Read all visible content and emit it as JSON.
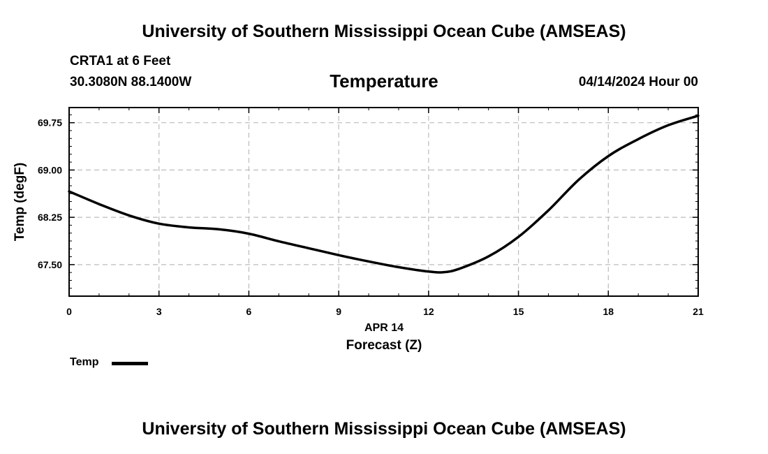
{
  "header": {
    "title": "University of Southern Mississippi Ocean Cube (AMSEAS)",
    "station": "CRTA1 at 6 Feet",
    "coordinates": "30.3080N  88.1400W",
    "variable": "Temperature",
    "datetime": "04/14/2024 Hour 00"
  },
  "footer": {
    "title": "University of Southern Mississippi Ocean Cube (AMSEAS)"
  },
  "legend": {
    "label": "Temp",
    "color": "#000000"
  },
  "chart_data": {
    "type": "line",
    "title": "Temperature",
    "xlabel": "Forecast (Z)",
    "xlabel_date": "APR 14",
    "ylabel": "Temp (degF)",
    "xlim": [
      0,
      21
    ],
    "ylim": [
      67.0,
      69.99
    ],
    "xticks": [
      0,
      3,
      6,
      9,
      12,
      15,
      18,
      21
    ],
    "xtick_labels": [
      "0",
      "3",
      "6",
      "9",
      "12",
      "15",
      "18",
      "21"
    ],
    "yticks": [
      67.5,
      68.25,
      69.0,
      69.75
    ],
    "ytick_labels": [
      "67.50",
      "68.25",
      "69.00",
      "69.75"
    ],
    "grid": true,
    "legend_position": "bottom-left",
    "series": [
      {
        "name": "Temp",
        "color": "#000000",
        "x": [
          0,
          1,
          2,
          3,
          4,
          5,
          6,
          7,
          8,
          9,
          10,
          11,
          12,
          12.5,
          13,
          14,
          15,
          16,
          17,
          18,
          19,
          20,
          21
        ],
        "values": [
          68.66,
          68.46,
          68.28,
          68.15,
          68.09,
          68.06,
          67.99,
          67.87,
          67.76,
          67.65,
          67.55,
          67.46,
          67.39,
          67.38,
          67.43,
          67.63,
          67.94,
          68.36,
          68.84,
          69.22,
          69.49,
          69.71,
          69.86
        ]
      }
    ]
  }
}
